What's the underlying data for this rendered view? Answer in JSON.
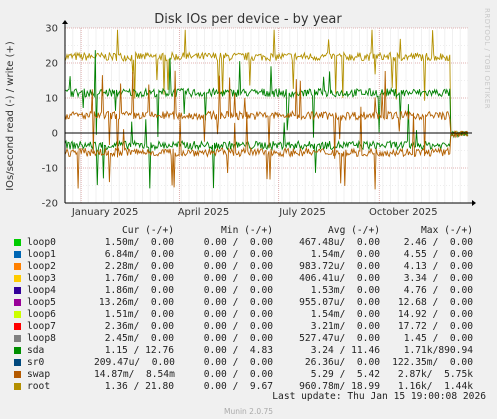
{
  "chart_data": {
    "type": "line",
    "title": "Disk IOs per device - by year",
    "ylabel": "IOs/second read (-) / write (+)",
    "xlabel": "",
    "ylim": [
      -20,
      30
    ],
    "yticks": [
      "30",
      "20",
      "10",
      "0",
      "-10",
      "-20"
    ],
    "ytick_values": [
      30,
      20,
      10,
      0,
      -10,
      -20
    ],
    "xticks": [
      "January 2025",
      "April 2025",
      "July 2025",
      "October 2025"
    ],
    "xtick_values": [
      0.04,
      0.284,
      0.53,
      0.78
    ],
    "grid": true,
    "watermark": "RRDTOOL / TOBI OETIKER",
    "series_bands": [
      {
        "name": "root",
        "color": "#b39000",
        "write_level": 21.8,
        "read_level": 0.0
      },
      {
        "name": "loop1",
        "color": "#008000",
        "write_level": 11.5,
        "read_level": -3.5
      },
      {
        "name": "swap",
        "color": "#b36000",
        "write_level": 5.0,
        "read_level": -5.5
      }
    ]
  },
  "legend": {
    "headers": {
      "cur": "Cur (-/+)",
      "min": "Min (-/+)",
      "avg": "Avg (-/+)",
      "max": "Max (-/+)"
    },
    "rows": [
      {
        "name": "loop0",
        "color": "#00cc00",
        "cur": "1.50m/  0.00",
        "min": "0.00 /  0.00",
        "avg": "467.48u/  0.00",
        "max": "2.46 /  0.00"
      },
      {
        "name": "loop1",
        "color": "#0066b3",
        "cur": "6.84m/  0.00",
        "min": "0.00 /  0.00",
        "avg": "1.54m/  0.00",
        "max": "4.55 /  0.00"
      },
      {
        "name": "loop2",
        "color": "#ff8000",
        "cur": "2.28m/  0.00",
        "min": "0.00 /  0.00",
        "avg": "983.72u/  0.00",
        "max": "4.13 /  0.00"
      },
      {
        "name": "loop3",
        "color": "#ffcc00",
        "cur": "1.76m/  0.00",
        "min": "0.00 /  0.00",
        "avg": "406.41u/  0.00",
        "max": "3.34 /  0.00"
      },
      {
        "name": "loop4",
        "color": "#330099",
        "cur": "1.86m/  0.00",
        "min": "0.00 /  0.00",
        "avg": "1.53m/  0.00",
        "max": "4.76 /  0.00"
      },
      {
        "name": "loop5",
        "color": "#990099",
        "cur": "13.26m/  0.00",
        "min": "0.00 /  0.00",
        "avg": "955.07u/  0.00",
        "max": "12.68 /  0.00"
      },
      {
        "name": "loop6",
        "color": "#ccff00",
        "cur": "1.51m/  0.00",
        "min": "0.00 /  0.00",
        "avg": "1.54m/  0.00",
        "max": "14.92 /  0.00"
      },
      {
        "name": "loop7",
        "color": "#ff0000",
        "cur": "2.36m/  0.00",
        "min": "0.00 /  0.00",
        "avg": "3.21m/  0.00",
        "max": "17.72 /  0.00"
      },
      {
        "name": "loop8",
        "color": "#808080",
        "cur": "2.45m/  0.00",
        "min": "0.00 /  0.00",
        "avg": "527.47u/  0.00",
        "max": "1.45 /  0.00"
      },
      {
        "name": "sda",
        "color": "#008f00",
        "cur": "1.15 / 12.76",
        "min": "0.00 /  4.83",
        "avg": "3.24 / 11.46",
        "max": "1.71k/890.94"
      },
      {
        "name": "sr0",
        "color": "#00487d",
        "cur": "209.47u/  0.00",
        "min": "0.00 /  0.00",
        "avg": "26.36u/  0.00",
        "max": "122.35m/  0.00"
      },
      {
        "name": "swap",
        "color": "#b35a00",
        "cur": "14.87m/  8.54m",
        "min": "0.00 /  0.00",
        "avg": "5.29 /  5.42",
        "max": "2.87k/  5.75k"
      },
      {
        "name": "root",
        "color": "#b38f00",
        "cur": "1.36 / 21.80",
        "min": "0.00 /  9.67",
        "avg": "960.78m/ 18.99",
        "max": "1.16k/  1.44k"
      }
    ]
  },
  "footer": {
    "last_update": "Last update: Thu Jan 15 19:00:08 2026",
    "version": "Munin 2.0.75"
  }
}
